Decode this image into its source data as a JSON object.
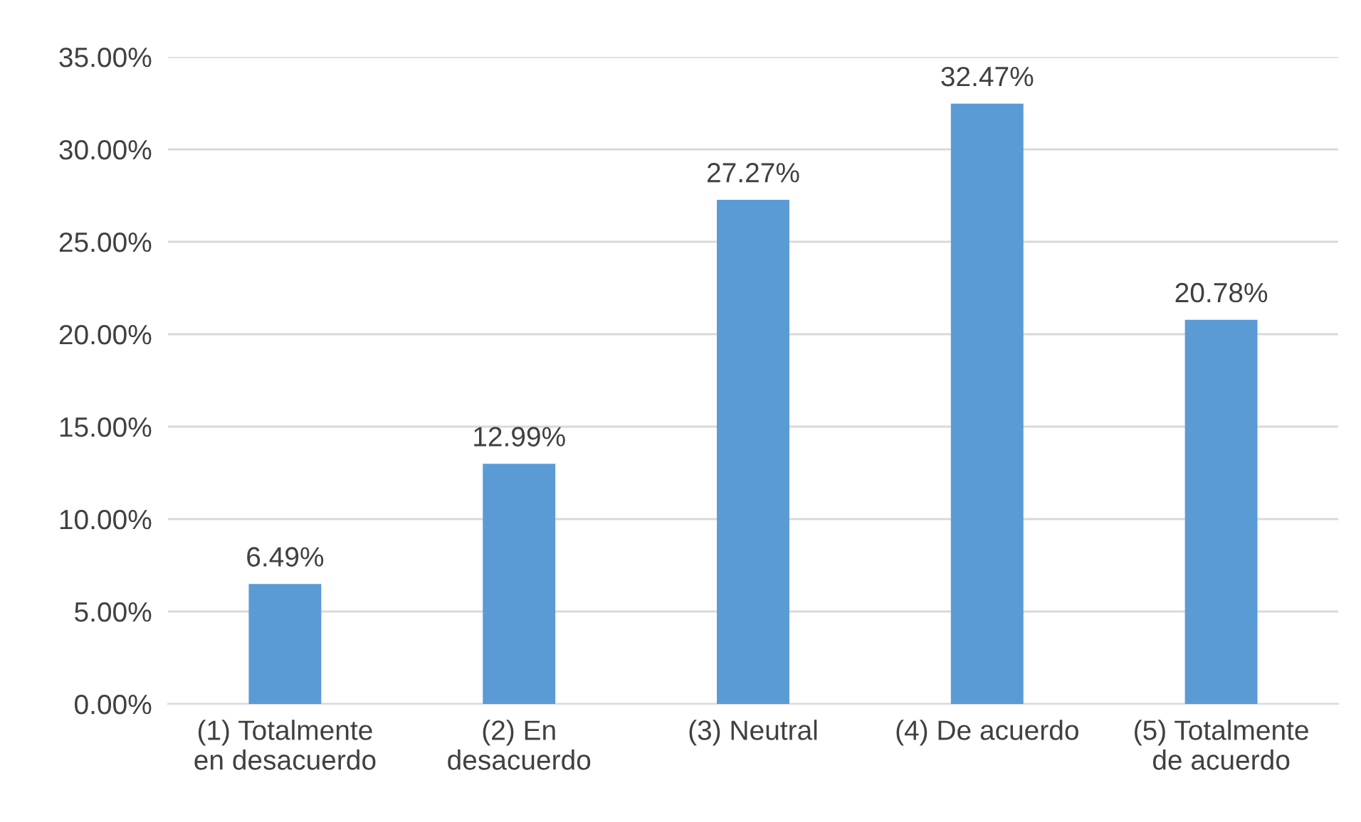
{
  "chart_data": {
    "type": "bar",
    "categories": [
      "(1) Totalmente\nen desacuerdo",
      "(2) En\ndesacuerdo",
      "(3) Neutral",
      "(4) De acuerdo",
      "(5) Totalmente\nde acuerdo"
    ],
    "values": [
      6.49,
      12.99,
      27.27,
      32.47,
      20.78
    ],
    "value_labels": [
      "6.49%",
      "12.99%",
      "27.27%",
      "32.47%",
      "20.78%"
    ],
    "color": "#5b9bd5",
    "ylim": [
      0,
      35
    ],
    "yticks": [
      {
        "value": 0,
        "label": "0.00%"
      },
      {
        "value": 5,
        "label": "5.00%"
      },
      {
        "value": 10,
        "label": "10.00%"
      },
      {
        "value": 15,
        "label": "15.00%"
      },
      {
        "value": 20,
        "label": "20.00%"
      },
      {
        "value": 25,
        "label": "25.00%"
      },
      {
        "value": 30,
        "label": "30.00%"
      },
      {
        "value": 35,
        "label": "35.00%"
      }
    ],
    "grid": "y",
    "legend": false
  }
}
